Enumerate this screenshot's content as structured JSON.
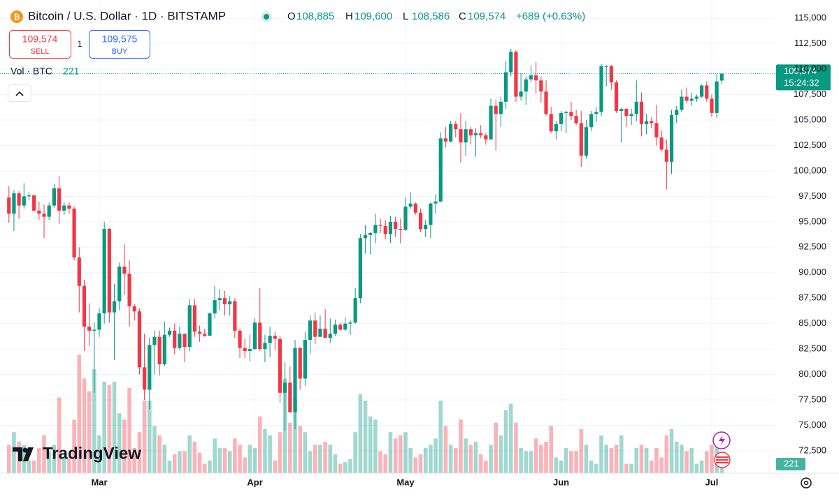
{
  "header": {
    "title": "Bitcoin / U.S. Dollar · 1D · BITSTAMP",
    "ohlc_readout": [
      [
        "O",
        "108,885"
      ],
      [
        "H",
        "109,600"
      ],
      [
        "L",
        "108,586"
      ],
      [
        "C",
        "109,574"
      ]
    ],
    "change": "+689 (+0.63%)",
    "sell_price": "109,574",
    "sell": "SELL",
    "spread": "1",
    "buy_price": "109,575",
    "buy": "BUY",
    "volume_label": "Vol · BTC",
    "last_price_label": "109,574",
    "countdown": "15:24:32",
    "logo": "TradingView"
  },
  "chart_data": {
    "type": "candlestick",
    "up_color": "#089981",
    "down_color": "#f23645",
    "grid": true,
    "ylim": [
      70300,
      116800
    ],
    "y2lim": [
      0,
      15000
    ],
    "yticks": [
      {
        "value": 72500,
        "label": "72,500"
      },
      {
        "value": 75000,
        "label": "75,000"
      },
      {
        "value": 77500,
        "label": "77,500"
      },
      {
        "value": 80000,
        "label": "80,000"
      },
      {
        "value": 82500,
        "label": "82,500"
      },
      {
        "value": 85000,
        "label": "85,000"
      },
      {
        "value": 87500,
        "label": "87,500"
      },
      {
        "value": 90000,
        "label": "90,000"
      },
      {
        "value": 92500,
        "label": "92,500"
      },
      {
        "value": 95000,
        "label": "95,000"
      },
      {
        "value": 97500,
        "label": "97,500"
      },
      {
        "value": 100000,
        "label": "100,000"
      },
      {
        "value": 102500,
        "label": "102,500"
      },
      {
        "value": 105000,
        "label": "105,000"
      },
      {
        "value": 107500,
        "label": "107,500"
      },
      {
        "value": 110000,
        "label": "110,000"
      },
      {
        "value": 112500,
        "label": "112,500"
      },
      {
        "value": 115000,
        "label": "115,000"
      }
    ],
    "categories": [
      null,
      null,
      null,
      null,
      null,
      null,
      null,
      null,
      null,
      null,
      null,
      null,
      null,
      null,
      null,
      null,
      null,
      null,
      "Mar",
      null,
      null,
      null,
      null,
      null,
      null,
      null,
      null,
      null,
      null,
      null,
      null,
      null,
      null,
      null,
      null,
      null,
      null,
      null,
      null,
      null,
      null,
      null,
      null,
      null,
      null,
      null,
      null,
      null,
      null,
      "Apr",
      null,
      null,
      null,
      null,
      null,
      null,
      null,
      null,
      null,
      null,
      null,
      null,
      null,
      null,
      null,
      null,
      null,
      null,
      null,
      null,
      null,
      null,
      null,
      null,
      null,
      null,
      null,
      null,
      null,
      "May",
      null,
      null,
      null,
      null,
      null,
      null,
      null,
      null,
      null,
      null,
      null,
      null,
      null,
      null,
      null,
      null,
      null,
      null,
      null,
      null,
      null,
      null,
      null,
      null,
      null,
      null,
      null,
      null,
      null,
      null,
      "Jun",
      null,
      null,
      null,
      null,
      null,
      null,
      null,
      null,
      null,
      null,
      null,
      null,
      null,
      null,
      null,
      null,
      null,
      null,
      null,
      null,
      null,
      null,
      null,
      null,
      null,
      null,
      null,
      null,
      null,
      "Jul",
      null,
      null
    ],
    "ohlc": [
      [
        97400,
        98500,
        94900,
        95800
      ],
      [
        95800,
        98100,
        94100,
        97800
      ],
      [
        97800,
        98000,
        95300,
        96600
      ],
      [
        96600,
        98800,
        96300,
        97500
      ],
      [
        97500,
        97900,
        97100,
        97600
      ],
      [
        97600,
        97700,
        96000,
        96100
      ],
      [
        96100,
        97000,
        95200,
        95800
      ],
      [
        95800,
        96700,
        93400,
        95500
      ],
      [
        95500,
        96900,
        95200,
        96600
      ],
      [
        96600,
        98700,
        96400,
        98300
      ],
      [
        98300,
        99500,
        94800,
        96100
      ],
      [
        96100,
        96900,
        95700,
        96600
      ],
      [
        96600,
        96900,
        95800,
        96300
      ],
      [
        96300,
        96500,
        91200,
        91500
      ],
      [
        91500,
        92500,
        86100,
        88700
      ],
      [
        88700,
        89300,
        82300,
        84700
      ],
      [
        84700,
        87000,
        82800,
        84300
      ],
      [
        84300,
        85100,
        78200,
        84400
      ],
      [
        84400,
        86500,
        83700,
        86000
      ],
      [
        86000,
        95000,
        85000,
        94300
      ],
      [
        94300,
        94400,
        85100,
        86100
      ],
      [
        86100,
        88900,
        81400,
        87200
      ],
      [
        87200,
        91000,
        86300,
        90600
      ],
      [
        90600,
        92800,
        87800,
        89900
      ],
      [
        89900,
        91200,
        84700,
        86700
      ],
      [
        86700,
        86900,
        85300,
        86200
      ],
      [
        86200,
        86500,
        80000,
        80700
      ],
      [
        80700,
        84000,
        77500,
        78500
      ],
      [
        78500,
        83600,
        76600,
        82900
      ],
      [
        82900,
        84300,
        80000,
        83700
      ],
      [
        83700,
        84300,
        79900,
        81000
      ],
      [
        81000,
        85200,
        80800,
        83900
      ],
      [
        83900,
        84600,
        83700,
        84300
      ],
      [
        84300,
        85000,
        82000,
        82600
      ],
      [
        82600,
        84700,
        82400,
        84000
      ],
      [
        84000,
        84000,
        81200,
        82700
      ],
      [
        82700,
        87400,
        82300,
        86800
      ],
      [
        86800,
        87400,
        83700,
        84200
      ],
      [
        84200,
        84800,
        83200,
        84000
      ],
      [
        84000,
        84500,
        83700,
        83800
      ],
      [
        83800,
        86100,
        83800,
        86000
      ],
      [
        86000,
        88700,
        85500,
        87300
      ],
      [
        87300,
        88400,
        86300,
        87500
      ],
      [
        87500,
        88200,
        85800,
        86900
      ],
      [
        86900,
        87700,
        85800,
        87200
      ],
      [
        87200,
        87500,
        83600,
        84300
      ],
      [
        84300,
        84500,
        81600,
        82600
      ],
      [
        82600,
        83500,
        81600,
        82300
      ],
      [
        82300,
        83900,
        81300,
        82500
      ],
      [
        82500,
        85500,
        82400,
        85100
      ],
      [
        85100,
        88500,
        82300,
        82500
      ],
      [
        82500,
        83900,
        81200,
        83100
      ],
      [
        83100,
        84700,
        81700,
        83800
      ],
      [
        83800,
        84200,
        82400,
        83500
      ],
      [
        83500,
        83800,
        77200,
        78200
      ],
      [
        78200,
        81200,
        74500,
        79200
      ],
      [
        79200,
        80800,
        76200,
        76300
      ],
      [
        76300,
        83400,
        74600,
        82600
      ],
      [
        82600,
        82700,
        78500,
        79600
      ],
      [
        79600,
        84200,
        78900,
        83400
      ],
      [
        83400,
        85800,
        82000,
        85300
      ],
      [
        85300,
        86100,
        83000,
        83700
      ],
      [
        83700,
        85800,
        83700,
        84500
      ],
      [
        84500,
        86400,
        83600,
        83600
      ],
      [
        83600,
        85500,
        83100,
        84000
      ],
      [
        84000,
        85400,
        83800,
        84900
      ],
      [
        84900,
        85100,
        84300,
        84400
      ],
      [
        84400,
        85600,
        84300,
        85000
      ],
      [
        85000,
        85300,
        83900,
        85100
      ],
      [
        85100,
        88500,
        85000,
        87500
      ],
      [
        87500,
        93800,
        87000,
        93400
      ],
      [
        93400,
        94700,
        91900,
        93700
      ],
      [
        93700,
        94000,
        91800,
        93900
      ],
      [
        93900,
        95800,
        92900,
        94700
      ],
      [
        94700,
        95300,
        93900,
        94600
      ],
      [
        94600,
        95200,
        93300,
        93800
      ],
      [
        93800,
        95600,
        92900,
        95000
      ],
      [
        95000,
        95500,
        93500,
        94300
      ],
      [
        94300,
        95300,
        92900,
        94200
      ],
      [
        94200,
        97400,
        94100,
        96500
      ],
      [
        96500,
        97900,
        96300,
        96800
      ],
      [
        96800,
        96900,
        95700,
        95900
      ],
      [
        95900,
        96300,
        94000,
        94300
      ],
      [
        94300,
        95200,
        93500,
        94700
      ],
      [
        94700,
        96900,
        93400,
        96800
      ],
      [
        96800,
        97700,
        95800,
        97000
      ],
      [
        97000,
        103800,
        96900,
        103200
      ],
      [
        103200,
        104300,
        102300,
        102900
      ],
      [
        102900,
        104900,
        102800,
        104600
      ],
      [
        104600,
        104900,
        103300,
        104100
      ],
      [
        104100,
        105700,
        100800,
        102800
      ],
      [
        102800,
        104900,
        101500,
        104100
      ],
      [
        104100,
        104300,
        102600,
        103500
      ],
      [
        103500,
        104200,
        101400,
        103700
      ],
      [
        103700,
        104500,
        103200,
        103500
      ],
      [
        103500,
        103700,
        102600,
        103100
      ],
      [
        103100,
        107100,
        103100,
        106400
      ],
      [
        106400,
        107000,
        102000,
        105600
      ],
      [
        105600,
        107300,
        104300,
        106800
      ],
      [
        106800,
        110800,
        106100,
        109700
      ],
      [
        109700,
        112000,
        109300,
        111700
      ],
      [
        111700,
        111900,
        106800,
        107300
      ],
      [
        107300,
        109600,
        106900,
        107800
      ],
      [
        107800,
        109300,
        106500,
        109000
      ],
      [
        109000,
        110400,
        108700,
        109400
      ],
      [
        109400,
        110700,
        107600,
        108900
      ],
      [
        108900,
        109300,
        106700,
        107800
      ],
      [
        107800,
        108900,
        105400,
        105600
      ],
      [
        105600,
        106300,
        103700,
        103900
      ],
      [
        103900,
        104900,
        103100,
        104600
      ],
      [
        104600,
        105900,
        103900,
        105700
      ],
      [
        105700,
        105900,
        103700,
        105800
      ],
      [
        105800,
        106800,
        105000,
        105400
      ],
      [
        105400,
        106000,
        104500,
        104700
      ],
      [
        104700,
        105900,
        100400,
        101500
      ],
      [
        101500,
        105000,
        101200,
        104300
      ],
      [
        104300,
        105900,
        103900,
        105600
      ],
      [
        105600,
        106300,
        104800,
        105800
      ],
      [
        105800,
        110500,
        105400,
        110300
      ],
      [
        110300,
        110400,
        108300,
        110300
      ],
      [
        110300,
        110400,
        108000,
        108700
      ],
      [
        108700,
        108900,
        105700,
        105900
      ],
      [
        105900,
        106200,
        102800,
        106100
      ],
      [
        106100,
        106200,
        104300,
        105400
      ],
      [
        105400,
        106100,
        104500,
        105600
      ],
      [
        105600,
        108900,
        104900,
        106800
      ],
      [
        106800,
        107700,
        103400,
        104600
      ],
      [
        104600,
        105600,
        103600,
        104900
      ],
      [
        104900,
        105300,
        104200,
        104700
      ],
      [
        104700,
        106500,
        102500,
        103300
      ],
      [
        103300,
        104000,
        101900,
        102100
      ],
      [
        102100,
        103100,
        98200,
        100900
      ],
      [
        100900,
        106000,
        99700,
        105500
      ],
      [
        105500,
        106400,
        104700,
        106000
      ],
      [
        106000,
        108000,
        105800,
        107300
      ],
      [
        107300,
        108200,
        106700,
        106900
      ],
      [
        106900,
        107700,
        106400,
        107100
      ],
      [
        107100,
        107500,
        106800,
        107300
      ],
      [
        107300,
        108500,
        107200,
        108400
      ],
      [
        108400,
        108800,
        106800,
        107100
      ],
      [
        107100,
        107500,
        105300,
        105700
      ],
      [
        105700,
        109500,
        105200,
        108800
      ],
      [
        108885,
        109600,
        108586,
        109574
      ]
    ],
    "volume": [
      900,
      1300,
      1000,
      900,
      400,
      400,
      800,
      1200,
      700,
      900,
      2400,
      500,
      450,
      1700,
      3750,
      3000,
      2600,
      3300,
      1200,
      2900,
      2800,
      2900,
      1900,
      1700,
      2700,
      800,
      1300,
      2300,
      2300,
      1500,
      1200,
      900,
      400,
      600,
      700,
      700,
      1200,
      1000,
      650,
      300,
      400,
      1100,
      800,
      800,
      700,
      1100,
      900,
      500,
      900,
      800,
      1800,
      1400,
      1200,
      400,
      1300,
      3000,
      1600,
      2400,
      1500,
      1300,
      700,
      900,
      900,
      1000,
      900,
      600,
      300,
      350,
      450,
      1300,
      2500,
      2300,
      1800,
      1700,
      700,
      600,
      1300,
      1100,
      1200,
      1300,
      800,
      500,
      600,
      800,
      900,
      1100,
      2300,
      1500,
      900,
      800,
      1700,
      1100,
      900,
      1000,
      600,
      400,
      900,
      1600,
      1200,
      2000,
      2200,
      1600,
      800,
      700,
      700,
      1100,
      900,
      1000,
      1500,
      500,
      400,
      800,
      700,
      700,
      1400,
      900,
      400,
      300,
      1200,
      900,
      800,
      900,
      1200,
      300,
      300,
      800,
      900,
      800,
      400,
      800,
      500,
      1200,
      1400,
      1000,
      900,
      700,
      800,
      300,
      400,
      700,
      900,
      900,
      221
    ]
  }
}
